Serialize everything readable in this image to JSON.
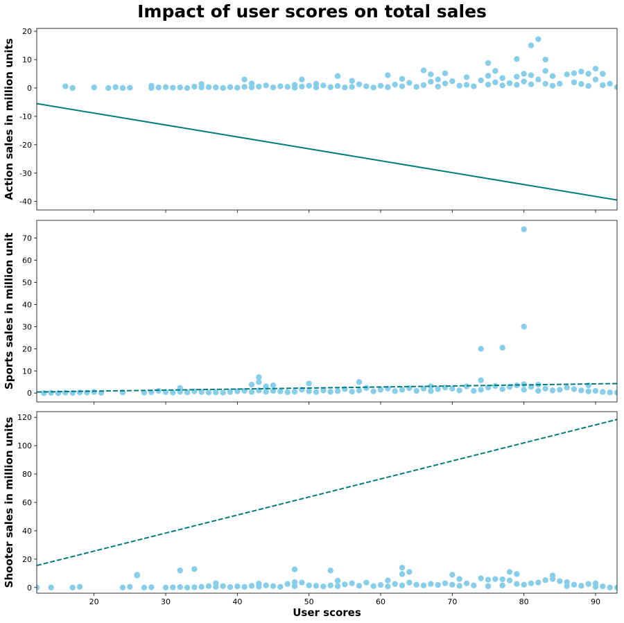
{
  "title": "Impact of user scores on total sales",
  "colors": {
    "points": "#87CEEB",
    "trend": "#007B7F"
  },
  "chart_data": [
    {
      "type": "scatter",
      "ylabel": "Action sales in million units",
      "xlabel": "",
      "xlim": [
        12,
        93
      ],
      "ylim": [
        -43,
        21
      ],
      "yticks": [
        -40,
        -30,
        -20,
        -10,
        0,
        10,
        20
      ],
      "xticks": [
        20,
        30,
        40,
        50,
        60,
        70,
        80,
        90
      ],
      "points": [
        [
          16,
          0.6
        ],
        [
          17,
          0
        ],
        [
          20,
          0.2
        ],
        [
          22,
          0
        ],
        [
          23,
          0.3
        ],
        [
          24,
          0
        ],
        [
          25,
          0.1
        ],
        [
          28,
          0
        ],
        [
          28,
          0.8
        ],
        [
          29,
          0.2
        ],
        [
          30,
          0.3
        ],
        [
          31,
          0.1
        ],
        [
          32,
          0.2
        ],
        [
          33,
          0
        ],
        [
          34,
          0.5
        ],
        [
          35,
          1.4
        ],
        [
          35,
          0.2
        ],
        [
          36,
          0.3
        ],
        [
          37,
          0.2
        ],
        [
          38,
          0
        ],
        [
          39,
          0.3
        ],
        [
          40,
          0.1
        ],
        [
          41,
          3.0
        ],
        [
          41,
          0.4
        ],
        [
          42,
          1.6
        ],
        [
          42,
          0.2
        ],
        [
          43,
          0.5
        ],
        [
          44,
          0.9
        ],
        [
          45,
          0.2
        ],
        [
          46,
          0.6
        ],
        [
          47,
          0.4
        ],
        [
          48,
          1.1
        ],
        [
          48,
          0.1
        ],
        [
          49,
          3.0
        ],
        [
          49,
          0.5
        ],
        [
          50,
          0.8
        ],
        [
          51,
          1.5
        ],
        [
          51,
          0.2
        ],
        [
          52,
          0.9
        ],
        [
          53,
          0.3
        ],
        [
          54,
          4.2
        ],
        [
          54,
          0.7
        ],
        [
          55,
          0.2
        ],
        [
          56,
          2.5
        ],
        [
          56,
          0.4
        ],
        [
          57,
          1.3
        ],
        [
          58,
          0.6
        ],
        [
          59,
          0.2
        ],
        [
          60,
          0.8
        ],
        [
          61,
          4.5
        ],
        [
          61,
          0.3
        ],
        [
          62,
          1.2
        ],
        [
          63,
          3.2
        ],
        [
          63,
          0.6
        ],
        [
          64,
          1.8
        ],
        [
          65,
          0.4
        ],
        [
          66,
          6.2
        ],
        [
          66,
          1.0
        ],
        [
          67,
          4.8
        ],
        [
          67,
          2.2
        ],
        [
          68,
          3.0
        ],
        [
          68,
          0.5
        ],
        [
          69,
          5.2
        ],
        [
          69,
          1.6
        ],
        [
          70,
          2.4
        ],
        [
          71,
          0.8
        ],
        [
          72,
          3.8
        ],
        [
          72,
          1.1
        ],
        [
          73,
          0.6
        ],
        [
          74,
          2.7
        ],
        [
          75,
          8.8
        ],
        [
          75,
          4.3
        ],
        [
          75,
          1.2
        ],
        [
          76,
          6.0
        ],
        [
          76,
          2.0
        ],
        [
          77,
          3.5
        ],
        [
          77,
          0.9
        ],
        [
          78,
          1.7
        ],
        [
          79,
          10.2
        ],
        [
          79,
          4.0
        ],
        [
          79,
          1.1
        ],
        [
          80,
          5.0
        ],
        [
          80,
          2.3
        ],
        [
          81,
          15.0
        ],
        [
          81,
          4.5
        ],
        [
          81,
          1.3
        ],
        [
          82,
          17.2
        ],
        [
          82,
          3.0
        ],
        [
          83,
          10.0
        ],
        [
          83,
          6.0
        ],
        [
          83,
          1.5
        ],
        [
          84,
          4.2
        ],
        [
          84,
          0.8
        ],
        [
          85,
          1.5
        ],
        [
          86,
          4.8
        ],
        [
          87,
          5.2
        ],
        [
          87,
          2.0
        ],
        [
          88,
          5.8
        ],
        [
          88,
          1.4
        ],
        [
          89,
          5.0
        ],
        [
          89,
          0.7
        ],
        [
          90,
          6.8
        ],
        [
          90,
          3.0
        ],
        [
          91,
          5.0
        ],
        [
          91,
          1.0
        ],
        [
          92,
          1.5
        ],
        [
          93,
          0.3
        ]
      ],
      "trend": {
        "style": "solid",
        "from": [
          12,
          -5.5
        ],
        "to": [
          93,
          -39.5
        ]
      }
    },
    {
      "type": "scatter",
      "ylabel": "Sports sales in million unit",
      "xlabel": "",
      "xlim": [
        12,
        93
      ],
      "ylim": [
        -4,
        78
      ],
      "yticks": [
        0,
        10,
        20,
        30,
        40,
        50,
        60,
        70
      ],
      "xticks": [
        20,
        30,
        40,
        50,
        60,
        70,
        80,
        90
      ],
      "points": [
        [
          13,
          0
        ],
        [
          14,
          0.1
        ],
        [
          15,
          0
        ],
        [
          16,
          0.2
        ],
        [
          17,
          0.1
        ],
        [
          18,
          0.3
        ],
        [
          19,
          0.2
        ],
        [
          20,
          0.5
        ],
        [
          21,
          0.1
        ],
        [
          24,
          0.3
        ],
        [
          27,
          0.2
        ],
        [
          28,
          0.4
        ],
        [
          29,
          1.0
        ],
        [
          30,
          0.5
        ],
        [
          31,
          0.2
        ],
        [
          32,
          2.3
        ],
        [
          32,
          0.6
        ],
        [
          33,
          0.3
        ],
        [
          34,
          0.8
        ],
        [
          35,
          0.5
        ],
        [
          36,
          0.2
        ],
        [
          37,
          0.3
        ],
        [
          38,
          0.2
        ],
        [
          39,
          0.5
        ],
        [
          40,
          0.8
        ],
        [
          41,
          1.0
        ],
        [
          42,
          3.8
        ],
        [
          42,
          0.5
        ],
        [
          43,
          7.2
        ],
        [
          43,
          5.0
        ],
        [
          43,
          1.2
        ],
        [
          44,
          3.0
        ],
        [
          44,
          0.6
        ],
        [
          45,
          3.5
        ],
        [
          45,
          1.0
        ],
        [
          46,
          0.8
        ],
        [
          47,
          0.4
        ],
        [
          48,
          0.6
        ],
        [
          49,
          1.5
        ],
        [
          50,
          4.3
        ],
        [
          50,
          0.8
        ],
        [
          51,
          0.5
        ],
        [
          52,
          1.2
        ],
        [
          53,
          0.6
        ],
        [
          54,
          0.9
        ],
        [
          55,
          1.8
        ],
        [
          56,
          0.7
        ],
        [
          57,
          5.0
        ],
        [
          57,
          1.2
        ],
        [
          58,
          2.3
        ],
        [
          59,
          0.8
        ],
        [
          60,
          1.5
        ],
        [
          61,
          2.0
        ],
        [
          62,
          0.9
        ],
        [
          63,
          1.5
        ],
        [
          64,
          2.2
        ],
        [
          65,
          1.0
        ],
        [
          66,
          2.0
        ],
        [
          67,
          3.0
        ],
        [
          67,
          0.9
        ],
        [
          68,
          1.8
        ],
        [
          69,
          2.5
        ],
        [
          70,
          2.0
        ],
        [
          71,
          1.2
        ],
        [
          72,
          3.0
        ],
        [
          73,
          1.0
        ],
        [
          74,
          20.0
        ],
        [
          74,
          5.8
        ],
        [
          74,
          1.5
        ],
        [
          75,
          2.5
        ],
        [
          76,
          3.2
        ],
        [
          77,
          20.5
        ],
        [
          77,
          1.8
        ],
        [
          78,
          2.8
        ],
        [
          79,
          3.5
        ],
        [
          80,
          74.0
        ],
        [
          80,
          30.0
        ],
        [
          80,
          4.0
        ],
        [
          80,
          1.5
        ],
        [
          81,
          2.8
        ],
        [
          82,
          3.8
        ],
        [
          82,
          1.0
        ],
        [
          83,
          2.0
        ],
        [
          84,
          1.2
        ],
        [
          85,
          1.5
        ],
        [
          86,
          2.5
        ],
        [
          87,
          1.8
        ],
        [
          88,
          1.2
        ],
        [
          89,
          3.5
        ],
        [
          89,
          0.8
        ],
        [
          90,
          1.0
        ],
        [
          91,
          0.5
        ],
        [
          92,
          0.3
        ],
        [
          93,
          0.2
        ]
      ],
      "trend": {
        "style": "dashed",
        "from": [
          12,
          0.5
        ],
        "to": [
          93,
          4.3
        ]
      }
    },
    {
      "type": "scatter",
      "ylabel": "Shooter sales in million units",
      "xlabel": "User scores",
      "xlim": [
        12,
        93
      ],
      "ylim": [
        -4,
        124
      ],
      "yticks": [
        0,
        20,
        40,
        60,
        80,
        100,
        120
      ],
      "xticks": [
        20,
        30,
        40,
        50,
        60,
        70,
        80,
        90
      ],
      "points": [
        [
          12,
          0
        ],
        [
          14,
          0
        ],
        [
          17,
          0
        ],
        [
          18,
          0.5
        ],
        [
          24,
          0
        ],
        [
          25,
          0.5
        ],
        [
          26,
          9.0
        ],
        [
          26,
          8.5
        ],
        [
          27,
          0
        ],
        [
          28,
          0.2
        ],
        [
          30,
          0
        ],
        [
          31,
          0.1
        ],
        [
          32,
          12.0
        ],
        [
          32,
          0.3
        ],
        [
          33,
          0
        ],
        [
          34,
          13.0
        ],
        [
          34,
          0.2
        ],
        [
          35,
          0.5
        ],
        [
          36,
          1.0
        ],
        [
          37,
          3.0
        ],
        [
          37,
          0.5
        ],
        [
          38,
          1.0
        ],
        [
          39,
          0.3
        ],
        [
          40,
          0.8
        ],
        [
          41,
          0.5
        ],
        [
          42,
          1.2
        ],
        [
          43,
          2.8
        ],
        [
          43,
          0.6
        ],
        [
          44,
          1.5
        ],
        [
          45,
          1.0
        ],
        [
          46,
          0.5
        ],
        [
          47,
          2.5
        ],
        [
          48,
          12.8
        ],
        [
          48,
          3.8
        ],
        [
          48,
          1.0
        ],
        [
          49,
          3.5
        ],
        [
          50,
          1.5
        ],
        [
          51,
          1.2
        ],
        [
          52,
          0.8
        ],
        [
          53,
          12.0
        ],
        [
          53,
          1.5
        ],
        [
          54,
          4.8
        ],
        [
          54,
          1.0
        ],
        [
          55,
          2.2
        ],
        [
          56,
          3.0
        ],
        [
          57,
          1.2
        ],
        [
          58,
          3.5
        ],
        [
          59,
          1.0
        ],
        [
          60,
          1.8
        ],
        [
          61,
          5.0
        ],
        [
          61,
          0.8
        ],
        [
          62,
          2.5
        ],
        [
          63,
          14.0
        ],
        [
          63,
          9.5
        ],
        [
          63,
          1.5
        ],
        [
          64,
          11.0
        ],
        [
          64,
          3.5
        ],
        [
          65,
          2.0
        ],
        [
          66,
          1.5
        ],
        [
          67,
          2.5
        ],
        [
          68,
          1.8
        ],
        [
          69,
          3.0
        ],
        [
          70,
          9.0
        ],
        [
          70,
          2.0
        ],
        [
          71,
          6.0
        ],
        [
          71,
          1.2
        ],
        [
          72,
          3.0
        ],
        [
          73,
          1.5
        ],
        [
          74,
          6.5
        ],
        [
          75,
          5.5
        ],
        [
          75,
          1.0
        ],
        [
          76,
          6.0
        ],
        [
          77,
          5.8
        ],
        [
          77,
          1.5
        ],
        [
          78,
          11.0
        ],
        [
          78,
          5.0
        ],
        [
          79,
          9.5
        ],
        [
          79,
          2.5
        ],
        [
          80,
          2.0
        ],
        [
          81,
          3.0
        ],
        [
          82,
          3.5
        ],
        [
          83,
          5.2
        ],
        [
          84,
          8.5
        ],
        [
          84,
          6.0
        ],
        [
          85,
          4.5
        ],
        [
          86,
          3.8
        ],
        [
          86,
          1.0
        ],
        [
          87,
          2.0
        ],
        [
          88,
          1.2
        ],
        [
          89,
          2.5
        ],
        [
          90,
          3.0
        ],
        [
          90,
          0.5
        ],
        [
          91,
          0.8
        ],
        [
          92,
          0
        ],
        [
          93,
          0
        ]
      ],
      "trend": {
        "style": "dashed",
        "from": [
          12,
          15.5
        ],
        "to": [
          93,
          118.5
        ]
      }
    }
  ]
}
